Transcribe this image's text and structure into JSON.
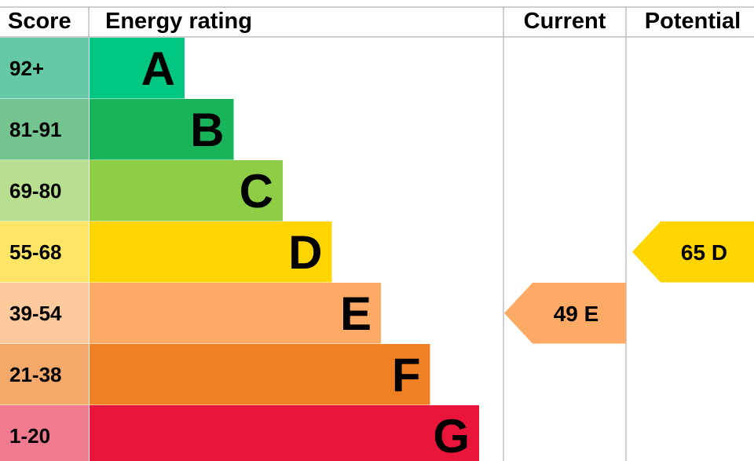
{
  "header": {
    "score": "Score",
    "energy_rating": "Energy rating",
    "current": "Current",
    "potential": "Potential"
  },
  "chart_data": {
    "type": "bar",
    "title": "",
    "bands": [
      {
        "score": "92+",
        "letter": "A",
        "bar_color": "#00c781",
        "score_bg": "#65c9a6"
      },
      {
        "score": "81-91",
        "letter": "B",
        "bar_color": "#19b459",
        "score_bg": "#74c48f"
      },
      {
        "score": "69-80",
        "letter": "C",
        "bar_color": "#8dce46",
        "score_bg": "#b8df8f"
      },
      {
        "score": "55-68",
        "letter": "D",
        "bar_color": "#ffd500",
        "score_bg": "#ffe566"
      },
      {
        "score": "39-54",
        "letter": "E",
        "bar_color": "#fcaa65",
        "score_bg": "#fdc99d"
      },
      {
        "score": "21-38",
        "letter": "F",
        "bar_color": "#ef8023",
        "score_bg": "#f4a86a"
      },
      {
        "score": "1-20",
        "letter": "G",
        "bar_color": "#e9153b",
        "score_bg": "#f07a8e"
      }
    ],
    "current": {
      "value": 49,
      "band": "E",
      "label": "49 E",
      "color": "#fcaa65"
    },
    "potential": {
      "value": 65,
      "band": "D",
      "label": "65 D",
      "color": "#ffd500"
    }
  }
}
